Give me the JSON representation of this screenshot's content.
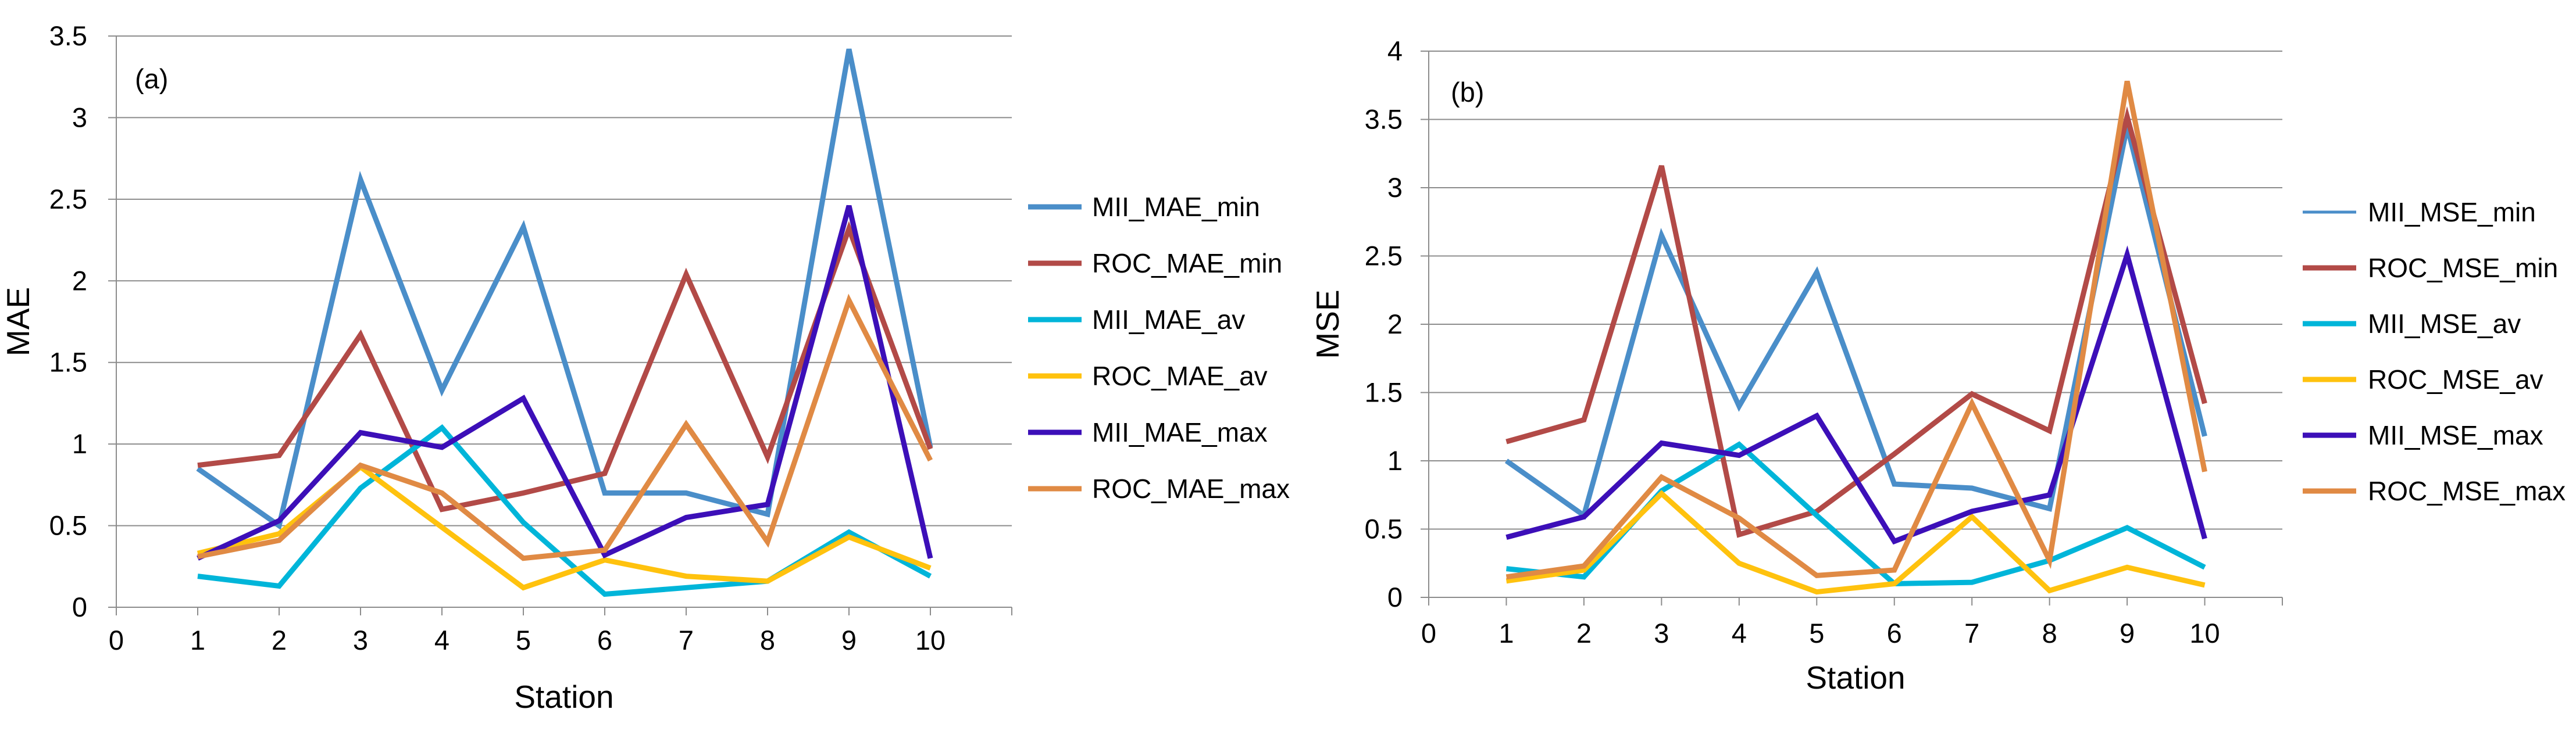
{
  "chart_data": [
    {
      "type": "line",
      "panel_label": "(a)",
      "xlabel": "Station",
      "ylabel": "MAE",
      "x_ticks": [
        "0",
        "1",
        "2",
        "3",
        "4",
        "5",
        "6",
        "7",
        "8",
        "9",
        "10"
      ],
      "y_ticks": [
        "0",
        "0.5",
        "1",
        "1.5",
        "2",
        "2.5",
        "3",
        "3.5"
      ],
      "xlim": [
        0,
        11
      ],
      "ylim": [
        0,
        3.5
      ],
      "grid": true,
      "legend_position": "right",
      "x": [
        1,
        2,
        3,
        4,
        5,
        6,
        7,
        8,
        9,
        10
      ],
      "series": [
        {
          "name": "MII_MAE_min",
          "color": "#4a8ec9",
          "width": 9,
          "values": [
            0.85,
            0.5,
            2.62,
            1.33,
            2.33,
            0.7,
            0.7,
            0.57,
            3.42,
            0.98
          ]
        },
        {
          "name": "ROC_MAE_min",
          "color": "#b24a47",
          "width": 9,
          "values": [
            0.87,
            0.93,
            1.67,
            0.6,
            0.7,
            0.82,
            2.04,
            0.92,
            2.32,
            0.97
          ]
        },
        {
          "name": "MII_MAE_av",
          "color": "#00b5d9",
          "width": 9,
          "values": [
            0.19,
            0.13,
            0.73,
            1.1,
            0.52,
            0.08,
            0.12,
            0.16,
            0.46,
            0.19
          ]
        },
        {
          "name": "ROC_MAE_av",
          "color": "#ffc20e",
          "width": 9,
          "values": [
            0.33,
            0.45,
            0.86,
            0.49,
            0.12,
            0.29,
            0.19,
            0.16,
            0.43,
            0.24
          ]
        },
        {
          "name": "MII_MAE_max",
          "color": "#3c0fb8",
          "width": 9,
          "values": [
            0.3,
            0.53,
            1.07,
            0.98,
            1.28,
            0.32,
            0.55,
            0.63,
            2.46,
            0.3
          ]
        },
        {
          "name": "ROC_MAE_max",
          "color": "#e08a44",
          "width": 9,
          "values": [
            0.31,
            0.41,
            0.87,
            0.7,
            0.3,
            0.35,
            1.12,
            0.4,
            1.88,
            0.9
          ]
        }
      ]
    },
    {
      "type": "line",
      "panel_label": "(b)",
      "xlabel": "Station",
      "ylabel": "MSE",
      "x_ticks": [
        "0",
        "1",
        "2",
        "3",
        "4",
        "5",
        "6",
        "7",
        "8",
        "9",
        "10"
      ],
      "y_ticks": [
        "0",
        "0.5",
        "1",
        "1.5",
        "2",
        "2.5",
        "3",
        "3.5",
        "4"
      ],
      "xlim": [
        0,
        11
      ],
      "ylim": [
        0,
        4
      ],
      "grid": true,
      "legend_position": "right",
      "x": [
        1,
        2,
        3,
        4,
        5,
        6,
        7,
        8,
        9,
        10
      ],
      "series": [
        {
          "name": "MII_MSE_min",
          "color": "#4a8ec9",
          "width": 9,
          "values": [
            1.0,
            0.6,
            2.65,
            1.4,
            2.38,
            0.83,
            0.8,
            0.65,
            3.45,
            1.18
          ]
        },
        {
          "name": "ROC_MSE_min",
          "color": "#b24a47",
          "width": 9,
          "values": [
            1.14,
            1.3,
            3.16,
            0.46,
            0.63,
            1.05,
            1.49,
            1.22,
            3.52,
            1.42
          ]
        },
        {
          "name": "MII_MSE_av",
          "color": "#00b5d9",
          "width": 9,
          "values": [
            0.21,
            0.15,
            0.78,
            1.12,
            0.6,
            0.1,
            0.11,
            0.27,
            0.51,
            0.22
          ]
        },
        {
          "name": "ROC_MSE_av",
          "color": "#ffc20e",
          "width": 9,
          "values": [
            0.12,
            0.2,
            0.76,
            0.25,
            0.04,
            0.1,
            0.59,
            0.05,
            0.22,
            0.09
          ]
        },
        {
          "name": "MII_MSE_max",
          "color": "#3c0fb8",
          "width": 9,
          "values": [
            0.44,
            0.59,
            1.13,
            1.04,
            1.33,
            0.41,
            0.63,
            0.75,
            2.51,
            0.43
          ]
        },
        {
          "name": "ROC_MSE_max",
          "color": "#e08a44",
          "width": 9,
          "values": [
            0.15,
            0.23,
            0.88,
            0.58,
            0.16,
            0.2,
            1.42,
            0.27,
            3.78,
            0.92
          ]
        }
      ]
    }
  ]
}
